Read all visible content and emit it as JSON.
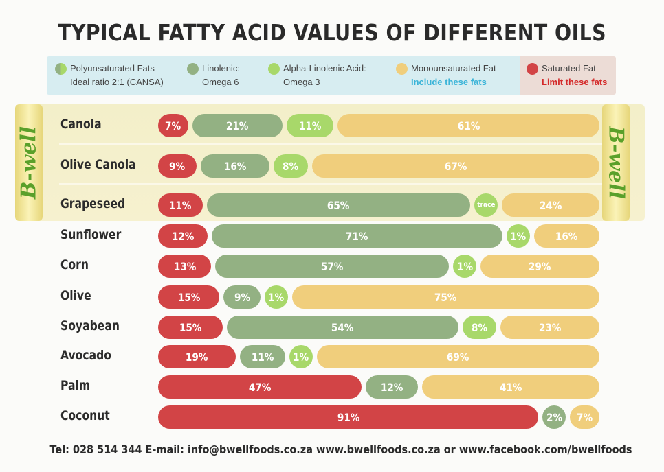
{
  "title": "TYPICAL FATTY ACID VALUES OF DIFFERENT OILS",
  "legend": {
    "poly_label": "Polyunsaturated Fats",
    "poly_sub": "Ideal ratio 2:1 (CANSA)",
    "linolenic_label": "Linolenic:",
    "linolenic_sub": "Omega 6",
    "alpha_label": "Alpha-Linolenic Acid:",
    "alpha_sub": "Omega 3",
    "mono_label": "Monounsaturated Fat",
    "mono_note": "Include these fats",
    "sat_label": "Saturated Fat",
    "sat_note": "Limit these fats"
  },
  "brand": "B-well",
  "colors": {
    "saturated": "#d24446",
    "omega6": "#93b183",
    "omega3": "#a8d86a",
    "mono": "#f0ce7c",
    "include_note": "#3ab4d8",
    "limit_note": "#d42a2a"
  },
  "chart_data": {
    "type": "bar",
    "stacked": true,
    "unit": "%",
    "categories": [
      "Canola",
      "Olive Canola",
      "Grapeseed",
      "Sunflower",
      "Corn",
      "Olive",
      "Soyabean",
      "Avocado",
      "Palm",
      "Coconut"
    ],
    "series": [
      {
        "name": "Saturated Fat",
        "values": [
          7,
          9,
          11,
          12,
          13,
          15,
          15,
          19,
          47,
          91
        ],
        "labels": [
          "7%",
          "9%",
          "11%",
          "12%",
          "13%",
          "15%",
          "15%",
          "19%",
          "47%",
          "91%"
        ]
      },
      {
        "name": "Linolenic: Omega 6",
        "values": [
          21,
          16,
          65,
          71,
          57,
          9,
          54,
          11,
          12,
          2
        ],
        "labels": [
          "21%",
          "16%",
          "65%",
          "71%",
          "57%",
          "9%",
          "54%",
          "11%",
          "12%",
          "2%"
        ]
      },
      {
        "name": "Alpha-Linolenic Acid: Omega 3",
        "values": [
          11,
          8,
          0,
          1,
          1,
          1,
          8,
          1,
          0,
          0
        ],
        "labels": [
          "11%",
          "8%",
          "trace",
          "1%",
          "1%",
          "1%",
          "8%",
          "1%",
          "",
          ""
        ]
      },
      {
        "name": "Monounsaturated Fat",
        "values": [
          61,
          67,
          24,
          16,
          29,
          75,
          23,
          69,
          41,
          7
        ],
        "labels": [
          "61%",
          "67%",
          "24%",
          "16%",
          "29%",
          "75%",
          "23%",
          "69%",
          "41%",
          "7%"
        ]
      }
    ],
    "highlighted_categories": [
      "Canola",
      "Olive Canola",
      "Grapeseed"
    ]
  },
  "footer": "Tel: 028 514 344   E-mail: info@bwellfoods.co.za   www.bwellfoods.co.za   or   www.facebook.com/bwellfoods"
}
